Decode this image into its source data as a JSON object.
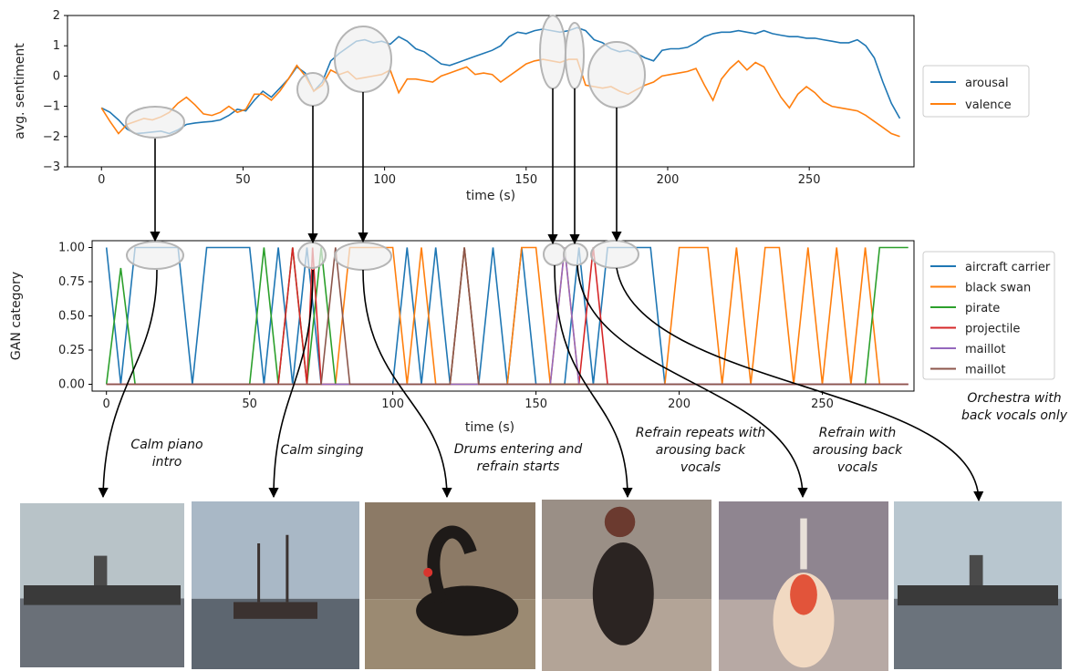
{
  "chart_data": [
    {
      "type": "line",
      "xlabel": "time (s)",
      "ylabel": "avg. sentiment",
      "xlim": [
        -12,
        287
      ],
      "ylim": [
        -3,
        2
      ],
      "xticks": [
        0,
        50,
        100,
        150,
        200,
        250
      ],
      "yticks": [
        -3,
        -2,
        -1,
        0,
        1,
        2
      ],
      "grid": false,
      "legend": "right",
      "x": [
        0,
        3,
        6,
        9,
        12,
        15,
        18,
        21,
        24,
        27,
        30,
        33,
        36,
        39,
        42,
        45,
        48,
        51,
        54,
        57,
        60,
        63,
        66,
        69,
        72,
        75,
        78,
        81,
        84,
        87,
        90,
        93,
        96,
        99,
        102,
        105,
        108,
        111,
        114,
        117,
        120,
        123,
        126,
        129,
        132,
        135,
        138,
        141,
        144,
        147,
        150,
        153,
        156,
        159,
        162,
        165,
        168,
        171,
        174,
        177,
        180,
        183,
        186,
        189,
        192,
        195,
        198,
        201,
        204,
        207,
        210,
        213,
        216,
        219,
        222,
        225,
        228,
        231,
        234,
        237,
        240,
        243,
        246,
        249,
        252,
        255,
        258,
        261,
        264,
        267,
        270,
        273,
        276,
        279,
        282
      ],
      "series": [
        {
          "name": "arousal",
          "color": "#1f77b4",
          "values": [
            -1.05,
            -1.2,
            -1.45,
            -1.75,
            -1.9,
            -1.88,
            -1.85,
            -1.82,
            -1.9,
            -1.78,
            -1.6,
            -1.55,
            -1.52,
            -1.5,
            -1.45,
            -1.3,
            -1.1,
            -1.15,
            -0.8,
            -0.5,
            -0.7,
            -0.4,
            -0.1,
            0.3,
            0.1,
            -0.5,
            -0.2,
            0.5,
            0.75,
            0.95,
            1.15,
            1.2,
            1.1,
            1.15,
            1.05,
            1.3,
            1.15,
            0.9,
            0.8,
            0.6,
            0.4,
            0.35,
            0.45,
            0.55,
            0.65,
            0.75,
            0.85,
            1.0,
            1.3,
            1.45,
            1.4,
            1.5,
            1.55,
            1.5,
            1.45,
            1.5,
            1.6,
            1.5,
            1.2,
            1.1,
            0.9,
            0.8,
            0.85,
            0.75,
            0.6,
            0.5,
            0.85,
            0.9,
            0.9,
            0.95,
            1.1,
            1.3,
            1.4,
            1.45,
            1.45,
            1.5,
            1.45,
            1.4,
            1.5,
            1.4,
            1.35,
            1.3,
            1.3,
            1.25,
            1.25,
            1.2,
            1.15,
            1.1,
            1.1,
            1.2,
            1.0,
            0.6,
            -0.2,
            -0.9,
            -1.4
          ]
        },
        {
          "name": "valence",
          "color": "#ff7f0e",
          "values": [
            -1.05,
            -1.5,
            -1.9,
            -1.6,
            -1.5,
            -1.4,
            -1.45,
            -1.35,
            -1.2,
            -0.9,
            -0.7,
            -0.95,
            -1.25,
            -1.3,
            -1.2,
            -1.0,
            -1.2,
            -1.1,
            -0.6,
            -0.6,
            -0.8,
            -0.5,
            -0.1,
            0.35,
            0.0,
            -0.5,
            -0.3,
            0.2,
            0.05,
            0.15,
            -0.1,
            -0.05,
            0.0,
            0.05,
            0.2,
            -0.55,
            -0.1,
            -0.1,
            -0.15,
            -0.2,
            0.0,
            0.1,
            0.2,
            0.3,
            0.05,
            0.1,
            0.05,
            -0.2,
            0.0,
            0.2,
            0.4,
            0.5,
            0.55,
            0.5,
            0.45,
            0.55,
            0.55,
            -0.3,
            -0.35,
            -0.4,
            -0.35,
            -0.5,
            -0.6,
            -0.45,
            -0.3,
            -0.2,
            0.0,
            0.05,
            0.1,
            0.15,
            0.25,
            -0.3,
            -0.8,
            -0.1,
            0.25,
            0.5,
            0.2,
            0.45,
            0.3,
            -0.2,
            -0.7,
            -1.05,
            -0.6,
            -0.35,
            -0.55,
            -0.85,
            -1.0,
            -1.05,
            -1.1,
            -1.15,
            -1.3,
            -1.5,
            -1.7,
            -1.9,
            -2.0
          ]
        }
      ]
    },
    {
      "type": "line",
      "xlabel": "time (s)",
      "ylabel": "GAN category",
      "xlim": [
        -5,
        282
      ],
      "ylim": [
        -0.05,
        1.05
      ],
      "xticks": [
        0,
        50,
        100,
        150,
        200,
        250
      ],
      "yticks": [
        "0.00",
        "0.25",
        "0.50",
        "0.75",
        "1.00"
      ],
      "grid": false,
      "legend": "right",
      "series": [
        {
          "name": "aircraft carrier",
          "color": "#1f77b4",
          "x": [
            0,
            5,
            10,
            15,
            20,
            25,
            30,
            35,
            40,
            45,
            50,
            55,
            60,
            65,
            70,
            75,
            80,
            85,
            90,
            95,
            100,
            105,
            110,
            115,
            120,
            125,
            130,
            135,
            140,
            145,
            150,
            155,
            160,
            165,
            170,
            175,
            180,
            185,
            190,
            195,
            200,
            205,
            210,
            215,
            220,
            225,
            230,
            235,
            240,
            245,
            250,
            255,
            260,
            265,
            270
          ],
          "values": [
            1,
            0,
            1,
            1,
            1,
            1,
            0,
            1,
            1,
            1,
            1,
            0,
            1,
            0,
            1,
            0,
            0,
            0,
            0,
            0,
            0,
            1,
            0,
            1,
            0,
            1,
            0,
            1,
            0,
            1,
            0,
            0,
            0,
            1,
            0,
            1,
            1,
            1,
            1,
            0,
            0,
            0,
            0,
            0,
            0,
            0,
            0,
            0,
            0,
            0,
            0,
            0,
            0,
            0,
            0
          ]
        },
        {
          "name": "black swan",
          "color": "#ff7f0e",
          "x": [
            0,
            80,
            85,
            90,
            95,
            100,
            105,
            110,
            115,
            120,
            125,
            130,
            135,
            140,
            145,
            150,
            155,
            160,
            165,
            170,
            175,
            180,
            185,
            190,
            195,
            200,
            205,
            210,
            215,
            220,
            225,
            230,
            235,
            240,
            245,
            250,
            255,
            260,
            265,
            270,
            275,
            280
          ],
          "values": [
            0,
            0,
            1,
            1,
            1,
            1,
            0,
            1,
            0,
            0,
            1,
            0,
            0,
            0,
            1,
            1,
            0,
            1,
            0,
            0,
            0,
            0,
            0,
            0,
            0,
            1,
            1,
            1,
            0,
            1,
            0,
            1,
            1,
            0,
            1,
            0,
            1,
            0,
            1,
            0,
            0,
            0
          ]
        },
        {
          "name": "pirate",
          "color": "#2ca02c",
          "x": [
            0,
            5,
            10,
            15,
            50,
            55,
            60,
            65,
            70,
            75,
            80,
            265,
            270,
            275,
            280
          ],
          "values": [
            0,
            0.85,
            0,
            0,
            0,
            1,
            0,
            1,
            0,
            1,
            0,
            0,
            1,
            1,
            1
          ]
        },
        {
          "name": "projectile",
          "color": "#d62728",
          "x": [
            0,
            60,
            65,
            70,
            72,
            75,
            80,
            165,
            170,
            175,
            280
          ],
          "values": [
            0,
            0,
            1,
            0,
            1,
            0,
            0,
            0,
            1,
            0,
            0
          ]
        },
        {
          "name": "maillot",
          "color": "#9467bd",
          "x": [
            0,
            155,
            160,
            165,
            280
          ],
          "values": [
            0,
            0,
            1,
            0,
            0
          ]
        },
        {
          "name": "maillot",
          "color": "#8c564b",
          "x": [
            0,
            75,
            80,
            85,
            120,
            125,
            130,
            280
          ],
          "values": [
            0,
            0,
            1,
            0,
            0,
            1,
            0,
            0
          ]
        }
      ]
    }
  ],
  "annotations": [
    "Calm piano intro",
    "Calm singing",
    "Drums entering and refrain starts",
    "Refrain repeats with arousing back vocals",
    "Refrain with arousing back vocals",
    "Orchestra with back vocals only"
  ],
  "thumbnails": [
    {
      "name": "aircraft-carrier-image",
      "sky": "#b8c3c8",
      "sea": "#6a7078"
    },
    {
      "name": "pirate-ship-image",
      "sky": "#a9b8c6",
      "sea": "#5d6670"
    },
    {
      "name": "black-swan-image",
      "sky": "#8c7a66",
      "sea": "#9b8a72"
    },
    {
      "name": "maillot-image",
      "sky": "#9a8f86",
      "sea": "#b3a497"
    },
    {
      "name": "projectile-image",
      "sky": "#8f8590",
      "sea": "#b7a9a4"
    },
    {
      "name": "aircraft-carrier-image-2",
      "sky": "#b8c6cf",
      "sea": "#6b737c"
    }
  ]
}
